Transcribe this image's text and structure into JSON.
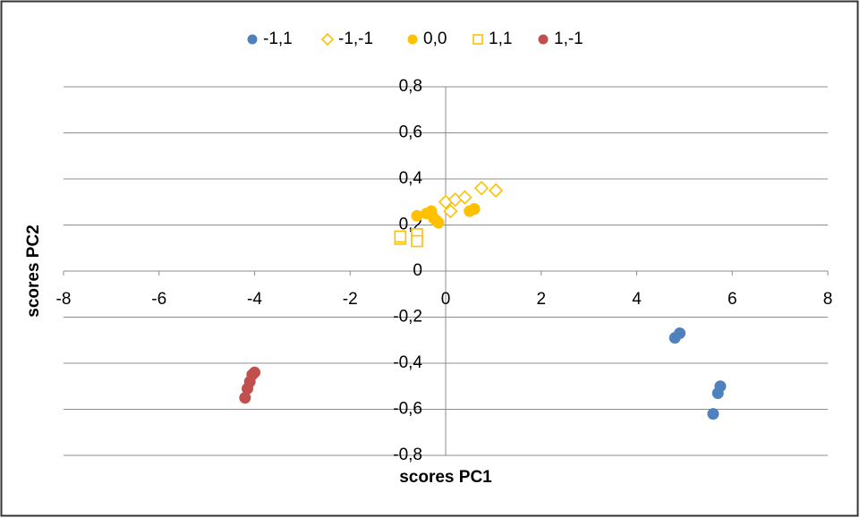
{
  "chart_data": {
    "type": "scatter",
    "x_label": "scores PC1",
    "y_label": "scores PC2",
    "xlim": [
      -8,
      8
    ],
    "xticks": [
      -8,
      -6,
      -4,
      -2,
      0,
      2,
      4,
      6,
      8
    ],
    "ylim": [
      -0.8,
      0.8
    ],
    "yticks": [
      {
        "value": -0.8,
        "label": "-0,8"
      },
      {
        "value": -0.6,
        "label": "-0,6"
      },
      {
        "value": -0.4,
        "label": "-0,4"
      },
      {
        "value": -0.2,
        "label": "-0,2"
      },
      0,
      {
        "value": 0.2,
        "label": "0,2"
      },
      {
        "value": 0.4,
        "label": "0,4"
      },
      {
        "value": 0.6,
        "label": "0,6"
      },
      {
        "value": 0.8,
        "label": "0,8"
      }
    ],
    "grid": true,
    "legend": "top",
    "series": [
      {
        "name": "-1,1",
        "color": "#4f81bd",
        "marker": "circle",
        "filled": true,
        "x": [
          4.8,
          4.9,
          5.6,
          5.7,
          5.75
        ],
        "y": [
          -0.29,
          -0.27,
          -0.62,
          -0.53,
          -0.5
        ]
      },
      {
        "name": "-1,-1",
        "color": "#ffc000",
        "marker": "diamond",
        "filled": false,
        "x": [
          0.0,
          0.1,
          0.2,
          0.4,
          0.75,
          1.05
        ],
        "y": [
          0.3,
          0.26,
          0.31,
          0.32,
          0.36,
          0.35
        ]
      },
      {
        "name": "0,0",
        "color": "#ffc000",
        "marker": "circle",
        "filled": true,
        "x": [
          -0.6,
          -0.4,
          -0.3,
          -0.25,
          -0.2,
          -0.15,
          0.5,
          0.6
        ],
        "y": [
          0.24,
          0.25,
          0.26,
          0.23,
          0.22,
          0.21,
          0.26,
          0.27
        ]
      },
      {
        "name": "1,1",
        "color": "#ffc000",
        "marker": "square",
        "filled": false,
        "x": [
          -0.95,
          -0.95,
          -0.6,
          -0.6
        ],
        "y": [
          0.14,
          0.15,
          0.16,
          0.13
        ]
      },
      {
        "name": "1,-1",
        "color": "#c0504d",
        "marker": "circle",
        "filled": true,
        "x": [
          -4.2,
          -4.15,
          -4.1,
          -4.05,
          -4.0
        ],
        "y": [
          -0.55,
          -0.51,
          -0.48,
          -0.45,
          -0.44
        ]
      }
    ]
  }
}
